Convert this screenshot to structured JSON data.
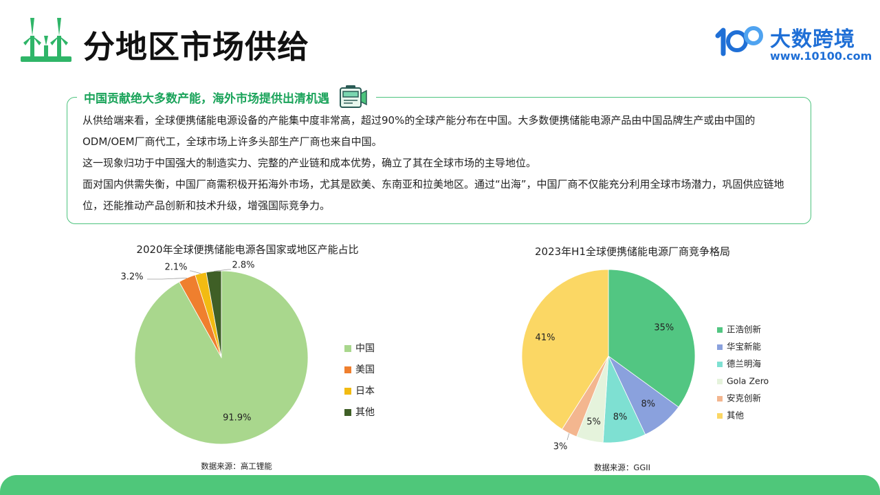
{
  "header": {
    "title": "分地区市场供给",
    "brand_name": "大数跨境",
    "brand_url": "www.10100.com"
  },
  "info": {
    "heading": "中国贡献绝大多数产能，海外市场提供出清机遇",
    "paragraphs": [
      "从供给端来看，全球便携储能电源设备的产能集中度非常高，超过90%的全球产能分布在中国。大多数便携储能电源产品由中国品牌生产或由中国的ODM/OEM厂商代工，全球市场上许多头部生产厂商也来自中国。",
      "这一现象归功于中国强大的制造实力、完整的产业链和成本优势，确立了其在全球市场的主导地位。",
      "面对国内供需失衡，中国厂商需积极开拓海外市场，尤其是欧美、东南亚和拉美地区。通过“出海”，中国厂商不仅能充分利用全球市场潜力，巩固供应链地位，还能推动产品创新和技术升级，增强国际竞争力。"
    ]
  },
  "chart_data": [
    {
      "type": "pie",
      "title": "2020年全球便携储能电源各国家或地区产能占比",
      "source": "数据来源：高工锂能",
      "legend_position": "right",
      "slices": [
        {
          "label": "中国",
          "value": 91.9,
          "display": "91.9%",
          "color": "#a9d78d"
        },
        {
          "label": "美国",
          "value": 3.2,
          "display": "3.2%",
          "color": "#ef7f2e"
        },
        {
          "label": "日本",
          "value": 2.1,
          "display": "2.1%",
          "color": "#f2bb12"
        },
        {
          "label": "其他",
          "value": 2.8,
          "display": "2.8%",
          "color": "#3f5f26"
        }
      ]
    },
    {
      "type": "pie",
      "title": "2023年H1全球便携储能电源厂商竞争格局",
      "source": "数据来源：GGII",
      "legend_position": "right",
      "slices": [
        {
          "label": "正浩创新",
          "value": 35,
          "display": "35%",
          "color": "#52c682"
        },
        {
          "label": "华宝新能",
          "value": 8,
          "display": "8%",
          "color": "#8aa1dd"
        },
        {
          "label": "德兰明海",
          "value": 8,
          "display": "8%",
          "color": "#7ee0d2"
        },
        {
          "label": "Gola Zero",
          "value": 5,
          "display": "5%",
          "color": "#e5f3dc"
        },
        {
          "label": "安克创新",
          "value": 3,
          "display": "3%",
          "color": "#f3b68f"
        },
        {
          "label": "其他",
          "value": 41,
          "display": "41%",
          "color": "#fbd764"
        }
      ]
    }
  ]
}
